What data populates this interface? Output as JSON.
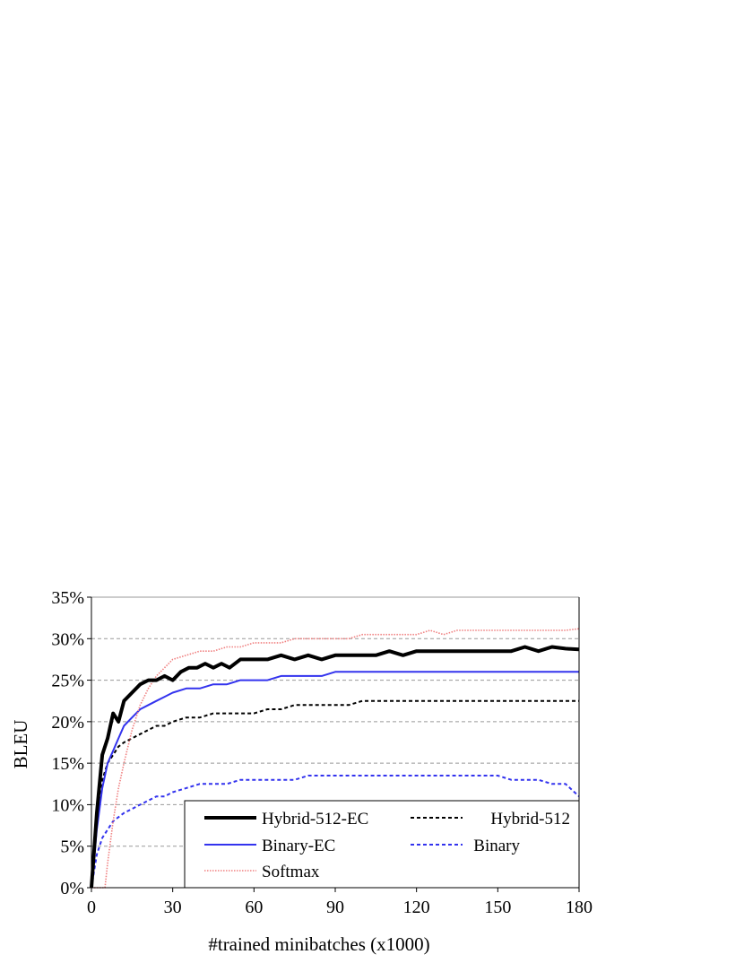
{
  "chart_data": {
    "type": "line",
    "title": "",
    "xlabel": "#trained minibatches (x1000)",
    "ylabel": "BLEU",
    "xlim": [
      0,
      180
    ],
    "ylim": [
      0,
      35
    ],
    "x_ticks": [
      "0",
      "30",
      "60",
      "90",
      "120",
      "150",
      "180"
    ],
    "y_ticks": [
      "0%",
      "5%",
      "10%",
      "15%",
      "20%",
      "25%",
      "30%",
      "35%"
    ],
    "grid": "horizontal dashed",
    "legend_placement": "bottom-right",
    "series": [
      {
        "name": "Hybrid-512-EC",
        "color": "#000000",
        "style": "solid-thick",
        "x": [
          0,
          2,
          4,
          6,
          8,
          10,
          12,
          15,
          18,
          21,
          24,
          27,
          30,
          33,
          36,
          39,
          42,
          45,
          48,
          51,
          55,
          60,
          65,
          70,
          75,
          80,
          85,
          90,
          95,
          100,
          105,
          110,
          115,
          120,
          125,
          130,
          135,
          140,
          145,
          150,
          155,
          160,
          165,
          170,
          175,
          180
        ],
        "y": [
          0,
          9,
          16,
          18,
          21,
          20,
          22.5,
          23.5,
          24.5,
          25,
          25,
          25.5,
          25,
          26,
          26.5,
          26.5,
          27,
          26.5,
          27,
          26.5,
          27.5,
          27.5,
          27.5,
          28,
          27.5,
          28,
          27.5,
          28,
          28,
          28,
          28,
          28.5,
          28,
          28.5,
          28.5,
          28.5,
          28.5,
          28.5,
          28.5,
          28.5,
          28.5,
          29,
          28.5,
          29,
          28.8,
          28.7
        ]
      },
      {
        "name": "Hybrid-512",
        "color": "#000000",
        "style": "dashed",
        "x": [
          0,
          2,
          4,
          6,
          8,
          10,
          12,
          15,
          18,
          21,
          24,
          27,
          30,
          35,
          40,
          45,
          50,
          55,
          60,
          65,
          70,
          75,
          80,
          85,
          90,
          95,
          100,
          105,
          110,
          115,
          120,
          125,
          130,
          135,
          140,
          145,
          150,
          155,
          160,
          165,
          170,
          175,
          180
        ],
        "y": [
          0,
          8,
          13,
          15,
          16,
          17,
          17.5,
          18,
          18.5,
          19,
          19.5,
          19.5,
          20,
          20.5,
          20.5,
          21,
          21,
          21,
          21,
          21.5,
          21.5,
          22,
          22,
          22,
          22,
          22,
          22.5,
          22.5,
          22.5,
          22.5,
          22.5,
          22.5,
          22.5,
          22.5,
          22.5,
          22.5,
          22.5,
          22.5,
          22.5,
          22.5,
          22.5,
          22.5,
          22.5
        ]
      },
      {
        "name": "Binary-EC",
        "color": "#3333ee",
        "style": "solid",
        "x": [
          0,
          2,
          4,
          6,
          8,
          10,
          12,
          15,
          18,
          21,
          24,
          27,
          30,
          35,
          40,
          45,
          50,
          55,
          60,
          65,
          70,
          75,
          80,
          85,
          90,
          95,
          100,
          105,
          110,
          115,
          120,
          125,
          130,
          135,
          140,
          145,
          150,
          155,
          160,
          165,
          170,
          175,
          180
        ],
        "y": [
          0,
          7,
          12,
          15,
          16.5,
          18,
          19.5,
          20.5,
          21.5,
          22,
          22.5,
          23,
          23.5,
          24,
          24,
          24.5,
          24.5,
          25,
          25,
          25,
          25.5,
          25.5,
          25.5,
          25.5,
          26,
          26,
          26,
          26,
          26,
          26,
          26,
          26,
          26,
          26,
          26,
          26,
          26,
          26,
          26,
          26,
          26,
          26,
          26
        ]
      },
      {
        "name": "Binary",
        "color": "#3333ee",
        "style": "dashed",
        "x": [
          0,
          2,
          4,
          6,
          8,
          10,
          12,
          15,
          18,
          21,
          24,
          27,
          30,
          35,
          40,
          45,
          50,
          55,
          60,
          65,
          70,
          75,
          80,
          85,
          90,
          95,
          100,
          105,
          110,
          115,
          120,
          125,
          130,
          135,
          140,
          145,
          150,
          155,
          160,
          165,
          170,
          175,
          180
        ],
        "y": [
          0,
          4,
          6,
          7,
          8,
          8.5,
          9,
          9.5,
          10,
          10.5,
          11,
          11,
          11.5,
          12,
          12.5,
          12.5,
          12.5,
          13,
          13,
          13,
          13,
          13,
          13.5,
          13.5,
          13.5,
          13.5,
          13.5,
          13.5,
          13.5,
          13.5,
          13.5,
          13.5,
          13.5,
          13.5,
          13.5,
          13.5,
          13.5,
          13,
          13,
          13,
          12.5,
          12.5,
          11
        ]
      },
      {
        "name": "Softmax",
        "color": "#f08080",
        "style": "dotted",
        "x": [
          0,
          2,
          4,
          5,
          6,
          8,
          10,
          12,
          15,
          18,
          21,
          24,
          27,
          30,
          35,
          40,
          45,
          50,
          55,
          60,
          65,
          70,
          75,
          80,
          85,
          90,
          95,
          100,
          105,
          110,
          115,
          120,
          125,
          130,
          135,
          140,
          145,
          150,
          155,
          160,
          165,
          170,
          175,
          180
        ],
        "y": [
          0,
          0,
          0,
          0,
          3,
          8,
          12,
          15,
          19,
          22,
          24,
          25.5,
          26.5,
          27.5,
          28,
          28.5,
          28.5,
          29,
          29,
          29.5,
          29.5,
          29.5,
          30,
          30,
          30,
          30,
          30,
          30.5,
          30.5,
          30.5,
          30.5,
          30.5,
          31,
          30.5,
          31,
          31,
          31,
          31,
          31,
          31,
          31,
          31,
          31,
          31.2
        ]
      }
    ]
  }
}
